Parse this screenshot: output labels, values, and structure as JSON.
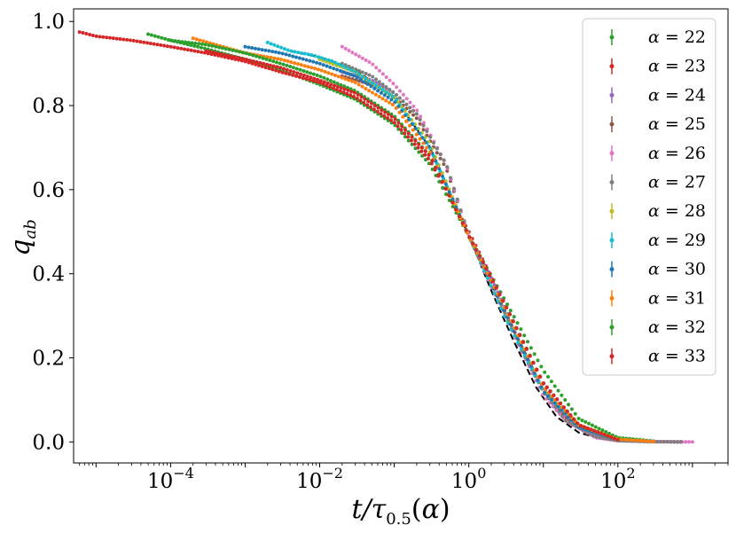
{
  "chart_data": {
    "type": "scatter",
    "title": "",
    "xlabel": "t/τ0.5(α)",
    "ylabel": "qab",
    "xscale": "log",
    "xlim": [
      5e-06,
      3000
    ],
    "ylim": [
      -0.05,
      1.03
    ],
    "x_ticks": [
      {
        "value": 0.0001,
        "base": "10",
        "exp": "−4"
      },
      {
        "value": 0.01,
        "base": "10",
        "exp": "−2"
      },
      {
        "value": 1,
        "base": "10",
        "exp": "0"
      },
      {
        "value": 100,
        "base": "10",
        "exp": "2"
      }
    ],
    "y_ticks": [
      {
        "value": 0.0,
        "label": "0.0"
      },
      {
        "value": 0.2,
        "label": "0.2"
      },
      {
        "value": 0.4,
        "label": "0.4"
      },
      {
        "value": 0.6,
        "label": "0.6"
      },
      {
        "value": 0.8,
        "label": "0.8"
      },
      {
        "value": 1.0,
        "label": "1.0"
      }
    ],
    "legend_position": "top-right",
    "fit_curve": {
      "style": "dashed",
      "color": "#000000",
      "x": [
        0.004,
        0.01,
        0.03,
        0.1,
        0.3,
        1,
        2,
        4,
        8,
        15,
        30,
        60,
        100,
        300
      ],
      "y": [
        0.93,
        0.915,
        0.885,
        0.82,
        0.7,
        0.49,
        0.36,
        0.24,
        0.13,
        0.06,
        0.022,
        0.008,
        0.003,
        0.0005
      ]
    },
    "series": [
      {
        "name": "α = 22",
        "alpha": "22",
        "color": "#2ca02c",
        "x": [
          0.0001,
          0.0003,
          0.001,
          0.003,
          0.01,
          0.03,
          0.1,
          0.3,
          1,
          3,
          10,
          30,
          100,
          300
        ],
        "y": [
          0.955,
          0.935,
          0.91,
          0.885,
          0.85,
          0.815,
          0.755,
          0.66,
          0.49,
          0.34,
          0.17,
          0.055,
          0.01,
          0.002
        ]
      },
      {
        "name": "α = 23",
        "alpha": "23",
        "color": "#d62728",
        "x": [
          6e-06,
          1e-05,
          3e-05,
          0.0001,
          0.0003,
          0.001,
          0.003,
          0.01,
          0.03,
          0.1,
          0.3,
          1,
          3,
          10,
          30,
          100
        ],
        "y": [
          0.975,
          0.965,
          0.955,
          0.94,
          0.925,
          0.905,
          0.88,
          0.855,
          0.82,
          0.76,
          0.67,
          0.5,
          0.33,
          0.14,
          0.04,
          0.005
        ]
      },
      {
        "name": "α = 24",
        "alpha": "24",
        "color": "#9467bd",
        "x": [
          0.02,
          0.05,
          0.1,
          0.2,
          0.5,
          1,
          2,
          5,
          10,
          20,
          50,
          100,
          300,
          700
        ],
        "y": [
          0.88,
          0.86,
          0.83,
          0.78,
          0.66,
          0.49,
          0.39,
          0.24,
          0.13,
          0.06,
          0.015,
          0.004,
          0.001,
          0.0
        ]
      },
      {
        "name": "α = 25",
        "alpha": "25",
        "color": "#8c564b",
        "x": [
          0.02,
          0.05,
          0.1,
          0.2,
          0.5,
          1,
          2,
          5,
          10,
          20,
          50,
          100,
          300,
          700
        ],
        "y": [
          0.87,
          0.85,
          0.82,
          0.77,
          0.65,
          0.49,
          0.38,
          0.23,
          0.12,
          0.055,
          0.012,
          0.003,
          0.0005,
          0.0
        ]
      },
      {
        "name": "α = 26",
        "alpha": "26",
        "color": "#e377c2",
        "x": [
          0.02,
          0.05,
          0.1,
          0.2,
          0.5,
          1,
          2,
          5,
          10,
          20,
          50,
          100,
          300,
          1000
        ],
        "y": [
          0.94,
          0.9,
          0.85,
          0.79,
          0.66,
          0.49,
          0.37,
          0.22,
          0.11,
          0.05,
          0.01,
          0.003,
          0.0005,
          0.0
        ]
      },
      {
        "name": "α = 27",
        "alpha": "27",
        "color": "#7f7f7f",
        "x": [
          0.02,
          0.05,
          0.1,
          0.2,
          0.5,
          1,
          2,
          5,
          10,
          20,
          50,
          100,
          300,
          700
        ],
        "y": [
          0.9,
          0.87,
          0.83,
          0.78,
          0.66,
          0.49,
          0.38,
          0.22,
          0.12,
          0.05,
          0.012,
          0.003,
          0.0005,
          0.0
        ]
      },
      {
        "name": "α = 28",
        "alpha": "28",
        "color": "#bcbd22",
        "x": [
          0.01,
          0.03,
          0.1,
          0.3,
          1,
          3,
          10,
          30,
          100,
          300
        ],
        "y": [
          0.91,
          0.88,
          0.82,
          0.71,
          0.49,
          0.31,
          0.12,
          0.04,
          0.006,
          0.001
        ]
      },
      {
        "name": "α = 29",
        "alpha": "29",
        "color": "#17becf",
        "x": [
          0.002,
          0.004,
          0.008,
          0.015,
          0.03,
          0.1,
          0.3,
          1,
          3,
          10,
          30,
          100,
          300
        ],
        "y": [
          0.95,
          0.93,
          0.92,
          0.905,
          0.88,
          0.82,
          0.7,
          0.49,
          0.3,
          0.12,
          0.035,
          0.005,
          0.001
        ]
      },
      {
        "name": "α = 30",
        "alpha": "30",
        "color": "#1f77b4",
        "x": [
          0.001,
          0.003,
          0.01,
          0.03,
          0.1,
          0.3,
          1,
          3,
          10,
          30,
          100,
          300
        ],
        "y": [
          0.94,
          0.925,
          0.9,
          0.87,
          0.81,
          0.7,
          0.49,
          0.31,
          0.12,
          0.035,
          0.005,
          0.001
        ]
      },
      {
        "name": "α = 31",
        "alpha": "31",
        "color": "#ff7f0e",
        "x": [
          0.0002,
          0.0005,
          0.001,
          0.003,
          0.01,
          0.03,
          0.1,
          0.3,
          1,
          3,
          10,
          30,
          100,
          300
        ],
        "y": [
          0.96,
          0.94,
          0.925,
          0.91,
          0.885,
          0.855,
          0.8,
          0.69,
          0.49,
          0.32,
          0.13,
          0.04,
          0.006,
          0.001
        ]
      },
      {
        "name": "α = 32",
        "alpha": "32",
        "color": "#2ca02c",
        "x": [
          5e-05,
          0.0001,
          0.0003,
          0.001,
          0.003,
          0.01,
          0.03,
          0.1,
          0.3,
          1,
          3,
          10,
          30,
          100
        ],
        "y": [
          0.97,
          0.955,
          0.945,
          0.925,
          0.9,
          0.87,
          0.835,
          0.775,
          0.68,
          0.49,
          0.33,
          0.14,
          0.04,
          0.005
        ]
      },
      {
        "name": "α = 33",
        "alpha": "33",
        "color": "#d62728",
        "x": [
          0.0003,
          0.001,
          0.003,
          0.01,
          0.03,
          0.1,
          0.3,
          1,
          3,
          10,
          30,
          100
        ],
        "y": [
          0.93,
          0.91,
          0.89,
          0.86,
          0.83,
          0.77,
          0.68,
          0.49,
          0.33,
          0.14,
          0.04,
          0.005
        ]
      }
    ]
  }
}
